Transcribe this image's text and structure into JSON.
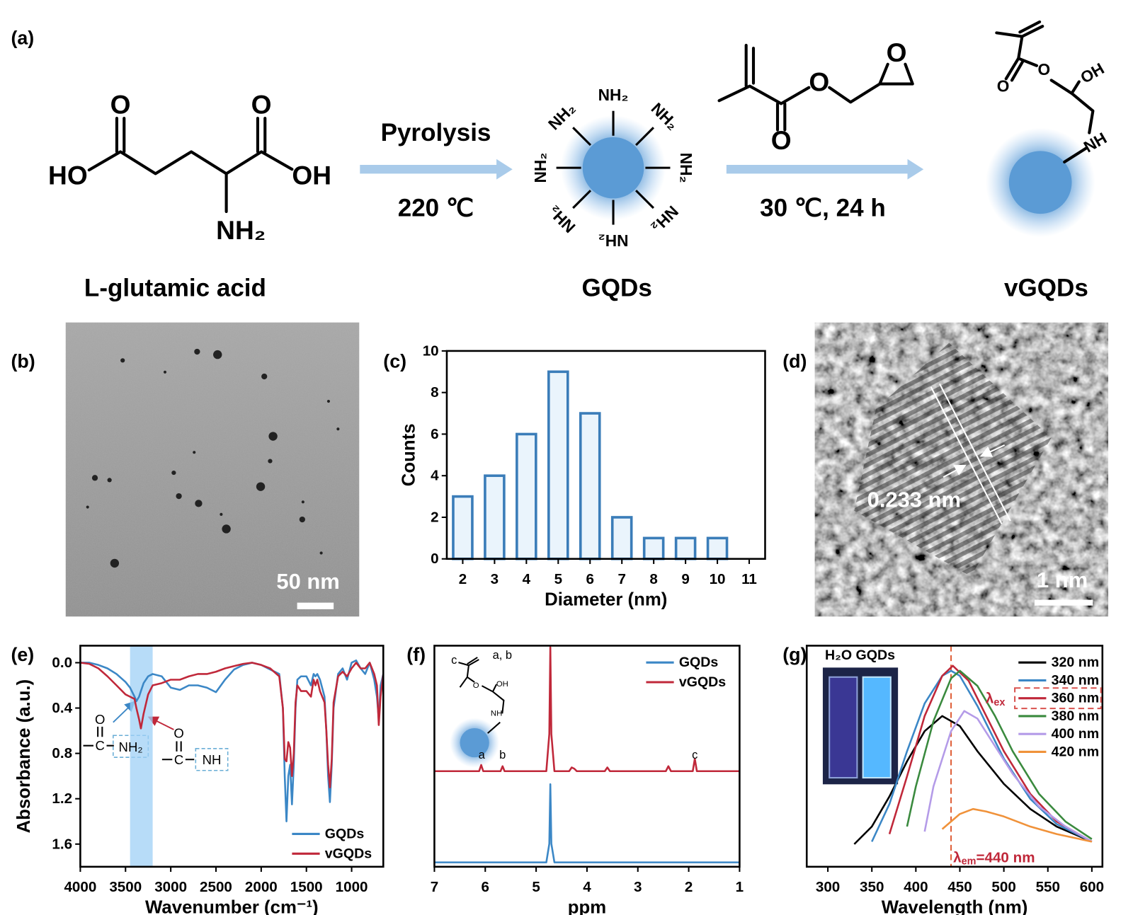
{
  "panel_labels": [
    "(a)",
    "(b)",
    "(c)",
    "(d)",
    "(e)",
    "(f)",
    "(g)"
  ],
  "scheme": {
    "glutamic_acid": {
      "atoms": [
        "O",
        "O",
        "HO",
        "OH",
        "NH₂"
      ],
      "name": "L-glutamic acid"
    },
    "step1": {
      "reagent": "Pyrolysis",
      "condition": "220 ℃"
    },
    "gqd": {
      "groups": [
        "NH₂",
        "NH₂",
        "NH₂",
        "NH₂",
        "NH₂",
        "NH₂",
        "NH₂",
        "NH₂"
      ],
      "name": "GQDs"
    },
    "glycidyl_methacrylate": {
      "atoms": [
        "O",
        "O",
        "O"
      ]
    },
    "step2": {
      "condition": "30 ℃, 24 h"
    },
    "vgqd": {
      "atoms": [
        "O",
        "O",
        "OH",
        "NH"
      ],
      "name": "vGQDs"
    }
  },
  "tem": {
    "scale_bar": "50 nm"
  },
  "hrtem": {
    "lattice_spacing": "0.233 nm",
    "scale_bar": "1 nm"
  },
  "chart_data": [
    {
      "type": "bar",
      "xlabel": "Diameter (nm)",
      "ylabel": "Counts",
      "x": [
        2,
        3,
        4,
        5,
        6,
        7,
        8,
        9,
        10
      ],
      "values": [
        3,
        4,
        6,
        9,
        7,
        2,
        1,
        1,
        1
      ],
      "color": "#3b7db9",
      "fill": "#eaf4fc",
      "xlim": [
        1.5,
        11.5
      ],
      "xticks": [
        2,
        3,
        4,
        5,
        6,
        7,
        8,
        9,
        10,
        11
      ],
      "ylim": [
        0,
        10
      ],
      "yticks": [
        0,
        2,
        4,
        6,
        8,
        10
      ]
    },
    {
      "type": "line",
      "xlabel": "Wavenumber (cm⁻¹)",
      "ylabel": "Absorbance (a.u.)",
      "xlim": [
        4000,
        650
      ],
      "xticks": [
        4000,
        3500,
        3000,
        2500,
        2000,
        1500,
        1000
      ],
      "ylim": [
        1.8,
        -0.15
      ],
      "yticks": [
        {
          "value": 0,
          "label": "0.0"
        },
        0.4,
        0.8,
        1.2,
        1.6
      ],
      "legend": "lower right",
      "highlight_range": [
        3450,
        3200
      ],
      "annotations": [
        "O",
        "C",
        "NH₂",
        "O",
        "C",
        "NH"
      ],
      "x": [
        4000,
        3900,
        3800,
        3700,
        3600,
        3500,
        3450,
        3400,
        3380,
        3350,
        3330,
        3300,
        3250,
        3200,
        3100,
        3000,
        2900,
        2800,
        2700,
        2600,
        2500,
        2400,
        2300,
        2200,
        2100,
        2000,
        1900,
        1800,
        1760,
        1740,
        1720,
        1700,
        1680,
        1660,
        1640,
        1620,
        1600,
        1560,
        1500,
        1450,
        1420,
        1400,
        1380,
        1350,
        1300,
        1280,
        1260,
        1240,
        1220,
        1200,
        1150,
        1100,
        1050,
        1000,
        950,
        900,
        850,
        800,
        750,
        720,
        700,
        680,
        650
      ],
      "series": [
        {
          "name": "GQDs",
          "color": "#3b87c6",
          "values": [
            0.0,
            0.0,
            0.02,
            0.05,
            0.1,
            0.17,
            0.22,
            0.3,
            0.34,
            0.3,
            0.25,
            0.18,
            0.12,
            0.1,
            0.12,
            0.22,
            0.24,
            0.2,
            0.2,
            0.22,
            0.26,
            0.15,
            0.06,
            0.02,
            0.0,
            0.02,
            0.06,
            0.1,
            0.4,
            1.0,
            1.4,
            1.0,
            0.9,
            1.25,
            0.9,
            0.4,
            0.15,
            0.12,
            0.12,
            0.2,
            0.1,
            0.12,
            0.1,
            0.15,
            0.3,
            0.6,
            1.0,
            1.23,
            0.9,
            0.4,
            0.1,
            0.05,
            0.15,
            0.0,
            -0.02,
            0.05,
            0.1,
            0.0,
            0.15,
            0.3,
            0.5,
            0.2,
            0.1
          ]
        },
        {
          "name": "vGQDs",
          "color": "#c0283a",
          "values": [
            0.0,
            0.01,
            0.05,
            0.12,
            0.2,
            0.28,
            0.3,
            0.32,
            0.4,
            0.5,
            0.58,
            0.45,
            0.28,
            0.2,
            0.18,
            0.15,
            0.15,
            0.12,
            0.1,
            0.1,
            0.08,
            0.05,
            0.03,
            0.01,
            0.0,
            0.02,
            0.05,
            0.12,
            0.4,
            0.85,
            0.87,
            0.7,
            0.75,
            1.0,
            0.8,
            0.35,
            0.2,
            0.25,
            0.25,
            0.3,
            0.15,
            0.2,
            0.15,
            0.25,
            0.35,
            0.6,
            0.9,
            1.1,
            0.85,
            0.35,
            0.12,
            0.08,
            0.12,
            0.05,
            0.0,
            0.05,
            0.05,
            0.0,
            0.1,
            0.2,
            0.55,
            0.3,
            0.1
          ]
        }
      ]
    },
    {
      "type": "line",
      "xlabel": "ppm",
      "xlim": [
        7,
        1
      ],
      "xticks": [
        7,
        6,
        5,
        4,
        3,
        2,
        1
      ],
      "legend": "upper right",
      "inset_labels": [
        "c",
        "a, b",
        "O",
        "OH",
        "NH"
      ],
      "peak_labels": [
        {
          "text": "a",
          "x": 6.07
        },
        {
          "text": "b",
          "x": 5.66
        },
        {
          "text": "c",
          "x": 1.88
        }
      ],
      "series": [
        {
          "name": "GQDs",
          "color": "#3b87c6",
          "x": [
            7,
            4.8,
            4.74,
            4.72,
            4.7,
            4.64,
            1
          ],
          "values": [
            0,
            0,
            0.15,
            0.63,
            0.15,
            0,
            0
          ]
        },
        {
          "name": "vGQDs",
          "color": "#c0283a",
          "x": [
            7,
            6.12,
            6.08,
            6.04,
            5.7,
            5.66,
            5.62,
            4.8,
            4.74,
            4.72,
            4.7,
            4.64,
            4.35,
            4.3,
            4.25,
            4.2,
            3.65,
            3.6,
            3.55,
            2.45,
            2.4,
            2.35,
            1.92,
            1.88,
            1.84,
            1
          ],
          "values": [
            0,
            0,
            0.05,
            0,
            0,
            0.04,
            0,
            0,
            0.3,
            1.0,
            0.3,
            0,
            0,
            0.03,
            0.02,
            0,
            0,
            0.03,
            0,
            0,
            0.04,
            0,
            0,
            0.1,
            0,
            0
          ]
        }
      ]
    },
    {
      "type": "line",
      "xlabel": "Wavelength (nm)",
      "xlim": [
        276,
        612
      ],
      "xticks": [
        300,
        350,
        400,
        450,
        500,
        550,
        600
      ],
      "ylim": [
        0,
        0.88
      ],
      "legend": "upper right",
      "inset_label": "H₂O GQDs",
      "excitation_label": {
        "symbol": "λ",
        "sub": "ex"
      },
      "emission_line": {
        "x": 440,
        "symbol": "λ",
        "sub": "em",
        "text": "=440 nm"
      },
      "series": [
        {
          "name": "320 nm",
          "color": "#000000",
          "x": [
            330,
            350,
            370,
            390,
            410,
            430,
            450,
            470,
            500,
            530,
            560,
            600
          ],
          "values": [
            0.09,
            0.16,
            0.28,
            0.42,
            0.54,
            0.6,
            0.56,
            0.46,
            0.33,
            0.23,
            0.16,
            0.1
          ]
        },
        {
          "name": "340 nm",
          "color": "#3b87c6",
          "x": [
            350,
            370,
            390,
            410,
            430,
            440,
            450,
            470,
            500,
            530,
            560,
            600
          ],
          "values": [
            0.1,
            0.25,
            0.46,
            0.65,
            0.76,
            0.78,
            0.76,
            0.64,
            0.43,
            0.27,
            0.17,
            0.1
          ]
        },
        {
          "name": "360 nm",
          "color": "#c0283a",
          "x": [
            370,
            390,
            410,
            430,
            442,
            460,
            480,
            500,
            530,
            560,
            600
          ],
          "values": [
            0.13,
            0.36,
            0.6,
            0.76,
            0.8,
            0.74,
            0.6,
            0.46,
            0.29,
            0.18,
            0.1
          ]
        },
        {
          "name": "380 nm",
          "color": "#3a8a3e",
          "x": [
            390,
            400,
            420,
            440,
            450,
            470,
            490,
            510,
            540,
            570,
            600
          ],
          "values": [
            0.16,
            0.32,
            0.58,
            0.75,
            0.78,
            0.72,
            0.6,
            0.46,
            0.29,
            0.18,
            0.11
          ]
        },
        {
          "name": "400 nm",
          "color": "#b49be8",
          "x": [
            410,
            420,
            440,
            455,
            470,
            490,
            510,
            540,
            570,
            600
          ],
          "values": [
            0.14,
            0.32,
            0.54,
            0.62,
            0.59,
            0.48,
            0.37,
            0.24,
            0.16,
            0.1
          ]
        },
        {
          "name": "420 nm",
          "color": "#f0923a",
          "x": [
            430,
            450,
            465,
            480,
            500,
            530,
            560,
            600
          ],
          "values": [
            0.15,
            0.21,
            0.23,
            0.22,
            0.2,
            0.16,
            0.13,
            0.1
          ]
        }
      ]
    }
  ]
}
